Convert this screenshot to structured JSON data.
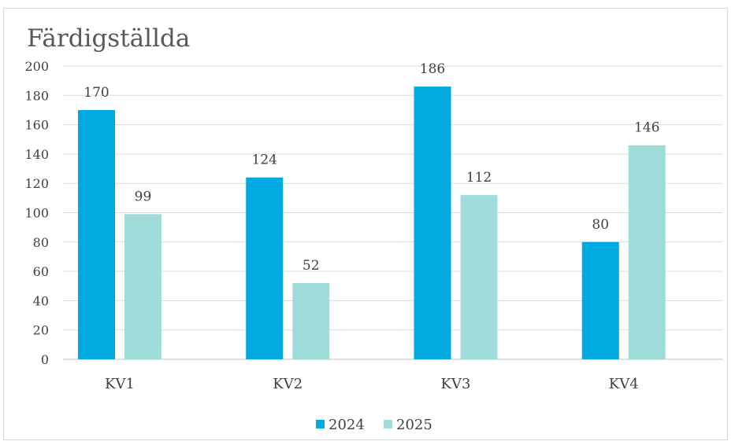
{
  "chart_data": {
    "type": "bar",
    "title": "Färdigställda",
    "categories": [
      "KV1",
      "KV2",
      "KV3",
      "KV4"
    ],
    "series": [
      {
        "name": "2024",
        "values": [
          170,
          124,
          186,
          80
        ],
        "color": "#00a9e0"
      },
      {
        "name": "2025",
        "values": [
          99,
          52,
          112,
          146
        ],
        "color": "#a0dcd9"
      }
    ],
    "ylim": [
      0,
      200
    ],
    "yticks": [
      0,
      20,
      40,
      60,
      80,
      100,
      120,
      140,
      160,
      180,
      200
    ],
    "grid": true,
    "legend": "bottom",
    "data_labels": true
  }
}
